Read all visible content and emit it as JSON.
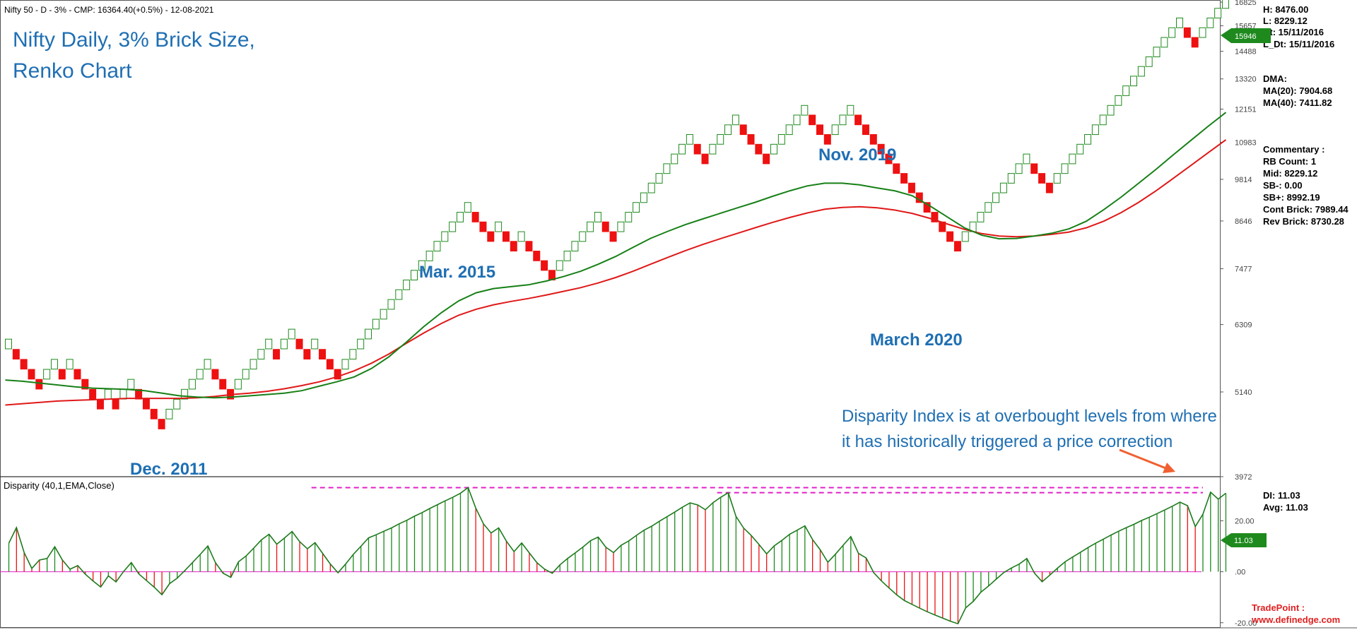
{
  "header": "Nifty 50 - D - 3% - CMP: 16364.40(+0.5%) - 12-08-2021",
  "title_lines": [
    "Nifty Daily, 3% Brick Size,",
    "Renko Chart"
  ],
  "annotations": {
    "dec2011": "Dec. 2011",
    "mar2015": "Mar. 2015",
    "nov2019": "Nov. 2019",
    "mar2020": "March 2020",
    "disparity_note": [
      "Disparity Index is at overbought levels from where",
      "it has historically triggered a price correction"
    ]
  },
  "info_panel": {
    "h": "H: 8476.00",
    "l": "L: 8229.12",
    "dt": "Dt: 15/11/2016",
    "ldt": "L_Dt: 15/11/2016",
    "dma_label": "DMA:",
    "ma20": "MA(20): 7904.68",
    "ma40": "MA(40): 7411.82",
    "commentary": "Commentary :",
    "rb_count": "RB Count: 1",
    "mid": "Mid: 8229.12",
    "sb_minus": "SB-: 0.00",
    "sb_plus": "SB+: 8992.19",
    "cont_brick": "Cont Brick: 7989.44",
    "rev_brick": "Rev Brick: 8730.28",
    "di": "DI: 11.03",
    "avg": "Avg: 11.03"
  },
  "price_marker": "15946",
  "di_marker": "11.03",
  "footer": {
    "brand": "TradePoint :",
    "url": "www.definedge.com"
  },
  "colors": {
    "up": "#1e8a1e",
    "down": "#ee1111",
    "ma20": "#178017",
    "ma40": "#e01818",
    "label_blue": "#1f6fb3",
    "magenta": "#e020c8"
  },
  "chart_data": [
    {
      "type": "renko",
      "title": "Nifty 50 - D - 3%",
      "brick_size_pct": 3,
      "y_axis_ticks": [
        3972,
        5140,
        6309,
        7477,
        8646,
        9814,
        10983,
        12151,
        13320,
        14488,
        15657,
        16825
      ],
      "ylim": [
        3972,
        16825
      ],
      "bricks": [
        {
          "d": "u",
          "lo": 5860
        },
        {
          "d": "d",
          "lo": 5680
        },
        {
          "d": "d",
          "lo": 5510
        },
        {
          "d": "d",
          "lo": 5345
        },
        {
          "d": "d",
          "lo": 5185
        },
        {
          "d": "u",
          "lo": 5345
        },
        {
          "d": "u",
          "lo": 5510
        },
        {
          "d": "d",
          "lo": 5345
        },
        {
          "d": "u",
          "lo": 5510
        },
        {
          "d": "d",
          "lo": 5345
        },
        {
          "d": "d",
          "lo": 5185
        },
        {
          "d": "d",
          "lo": 5030
        },
        {
          "d": "d",
          "lo": 4880
        },
        {
          "d": "u",
          "lo": 5030
        },
        {
          "d": "d",
          "lo": 4880
        },
        {
          "d": "u",
          "lo": 5030
        },
        {
          "d": "u",
          "lo": 5185
        },
        {
          "d": "d",
          "lo": 5030
        },
        {
          "d": "d",
          "lo": 4880
        },
        {
          "d": "d",
          "lo": 4735
        },
        {
          "d": "d",
          "lo": 4593
        },
        {
          "d": "u",
          "lo": 4735
        },
        {
          "d": "u",
          "lo": 4880
        },
        {
          "d": "u",
          "lo": 5030
        },
        {
          "d": "u",
          "lo": 5185
        },
        {
          "d": "u",
          "lo": 5345
        },
        {
          "d": "u",
          "lo": 5510
        },
        {
          "d": "d",
          "lo": 5345
        },
        {
          "d": "d",
          "lo": 5185
        },
        {
          "d": "d",
          "lo": 5030
        },
        {
          "d": "u",
          "lo": 5185
        },
        {
          "d": "u",
          "lo": 5345
        },
        {
          "d": "u",
          "lo": 5510
        },
        {
          "d": "u",
          "lo": 5680
        },
        {
          "d": "u",
          "lo": 5860
        },
        {
          "d": "d",
          "lo": 5680
        },
        {
          "d": "u",
          "lo": 5860
        },
        {
          "d": "u",
          "lo": 6040
        },
        {
          "d": "d",
          "lo": 5860
        },
        {
          "d": "d",
          "lo": 5680
        },
        {
          "d": "u",
          "lo": 5860
        },
        {
          "d": "d",
          "lo": 5680
        },
        {
          "d": "d",
          "lo": 5510
        },
        {
          "d": "d",
          "lo": 5345
        },
        {
          "d": "u",
          "lo": 5510
        },
        {
          "d": "u",
          "lo": 5680
        },
        {
          "d": "u",
          "lo": 5860
        },
        {
          "d": "u",
          "lo": 6040
        },
        {
          "d": "u",
          "lo": 6225
        },
        {
          "d": "u",
          "lo": 6415
        },
        {
          "d": "u",
          "lo": 6610
        },
        {
          "d": "u",
          "lo": 6810
        },
        {
          "d": "u",
          "lo": 7015
        },
        {
          "d": "u",
          "lo": 7225
        },
        {
          "d": "u",
          "lo": 7440
        },
        {
          "d": "u",
          "lo": 7660
        },
        {
          "d": "u",
          "lo": 7890
        },
        {
          "d": "u",
          "lo": 8125
        },
        {
          "d": "u",
          "lo": 8370
        },
        {
          "d": "u",
          "lo": 8620
        },
        {
          "d": "u",
          "lo": 8880
        },
        {
          "d": "d",
          "lo": 8620
        },
        {
          "d": "d",
          "lo": 8370
        },
        {
          "d": "d",
          "lo": 8125
        },
        {
          "d": "u",
          "lo": 8370
        },
        {
          "d": "d",
          "lo": 8125
        },
        {
          "d": "d",
          "lo": 7890
        },
        {
          "d": "u",
          "lo": 8125
        },
        {
          "d": "d",
          "lo": 7890
        },
        {
          "d": "d",
          "lo": 7660
        },
        {
          "d": "d",
          "lo": 7440
        },
        {
          "d": "d",
          "lo": 7225
        },
        {
          "d": "u",
          "lo": 7440
        },
        {
          "d": "u",
          "lo": 7660
        },
        {
          "d": "u",
          "lo": 7890
        },
        {
          "d": "u",
          "lo": 8125
        },
        {
          "d": "u",
          "lo": 8370
        },
        {
          "d": "u",
          "lo": 8620
        },
        {
          "d": "d",
          "lo": 8370
        },
        {
          "d": "d",
          "lo": 8125
        },
        {
          "d": "u",
          "lo": 8370
        },
        {
          "d": "u",
          "lo": 8620
        },
        {
          "d": "u",
          "lo": 8880
        },
        {
          "d": "u",
          "lo": 9145
        },
        {
          "d": "u",
          "lo": 9420
        },
        {
          "d": "u",
          "lo": 9700
        },
        {
          "d": "u",
          "lo": 9990
        },
        {
          "d": "u",
          "lo": 10290
        },
        {
          "d": "u",
          "lo": 10600
        },
        {
          "d": "u",
          "lo": 10920
        },
        {
          "d": "d",
          "lo": 10600
        },
        {
          "d": "d",
          "lo": 10290
        },
        {
          "d": "u",
          "lo": 10600
        },
        {
          "d": "u",
          "lo": 10920
        },
        {
          "d": "u",
          "lo": 11245
        },
        {
          "d": "u",
          "lo": 11585
        },
        {
          "d": "d",
          "lo": 11245
        },
        {
          "d": "d",
          "lo": 10920
        },
        {
          "d": "d",
          "lo": 10600
        },
        {
          "d": "d",
          "lo": 10290
        },
        {
          "d": "u",
          "lo": 10600
        },
        {
          "d": "u",
          "lo": 10920
        },
        {
          "d": "u",
          "lo": 11245
        },
        {
          "d": "u",
          "lo": 11585
        },
        {
          "d": "u",
          "lo": 11930
        },
        {
          "d": "d",
          "lo": 11585
        },
        {
          "d": "d",
          "lo": 11245
        },
        {
          "d": "d",
          "lo": 10920
        },
        {
          "d": "u",
          "lo": 11245
        },
        {
          "d": "u",
          "lo": 11585
        },
        {
          "d": "u",
          "lo": 11930
        },
        {
          "d": "d",
          "lo": 11585
        },
        {
          "d": "d",
          "lo": 11245
        },
        {
          "d": "d",
          "lo": 10920
        },
        {
          "d": "d",
          "lo": 10600
        },
        {
          "d": "d",
          "lo": 10290
        },
        {
          "d": "d",
          "lo": 9990
        },
        {
          "d": "d",
          "lo": 9700
        },
        {
          "d": "d",
          "lo": 9420
        },
        {
          "d": "d",
          "lo": 9145
        },
        {
          "d": "d",
          "lo": 8880
        },
        {
          "d": "d",
          "lo": 8620
        },
        {
          "d": "d",
          "lo": 8370
        },
        {
          "d": "d",
          "lo": 8125
        },
        {
          "d": "d",
          "lo": 7890
        },
        {
          "d": "u",
          "lo": 8125
        },
        {
          "d": "u",
          "lo": 8370
        },
        {
          "d": "u",
          "lo": 8620
        },
        {
          "d": "u",
          "lo": 8880
        },
        {
          "d": "u",
          "lo": 9145
        },
        {
          "d": "u",
          "lo": 9420
        },
        {
          "d": "u",
          "lo": 9700
        },
        {
          "d": "u",
          "lo": 9990
        },
        {
          "d": "u",
          "lo": 10290
        },
        {
          "d": "d",
          "lo": 9990
        },
        {
          "d": "d",
          "lo": 9700
        },
        {
          "d": "d",
          "lo": 9420
        },
        {
          "d": "u",
          "lo": 9700
        },
        {
          "d": "u",
          "lo": 9990
        },
        {
          "d": "u",
          "lo": 10290
        },
        {
          "d": "u",
          "lo": 10600
        },
        {
          "d": "u",
          "lo": 10920
        },
        {
          "d": "u",
          "lo": 11245
        },
        {
          "d": "u",
          "lo": 11585
        },
        {
          "d": "u",
          "lo": 11930
        },
        {
          "d": "u",
          "lo": 12290
        },
        {
          "d": "u",
          "lo": 12660
        },
        {
          "d": "u",
          "lo": 13040
        },
        {
          "d": "u",
          "lo": 13430
        },
        {
          "d": "u",
          "lo": 13830
        },
        {
          "d": "u",
          "lo": 14245
        },
        {
          "d": "u",
          "lo": 14670
        },
        {
          "d": "u",
          "lo": 15110
        },
        {
          "d": "u",
          "lo": 15565
        },
        {
          "d": "d",
          "lo": 15110
        },
        {
          "d": "d",
          "lo": 14670
        },
        {
          "d": "u",
          "lo": 15110
        },
        {
          "d": "u",
          "lo": 15565
        },
        {
          "d": "u",
          "lo": 16030
        },
        {
          "d": "u",
          "lo": 16510
        }
      ],
      "ma20": [
        5330,
        5310,
        5280,
        5250,
        5220,
        5200,
        5190,
        5180,
        5160,
        5120,
        5080,
        5060,
        5050,
        5060,
        5080,
        5100,
        5120,
        5160,
        5230,
        5300,
        5380,
        5520,
        5720,
        5980,
        6270,
        6540,
        6780,
        6950,
        7040,
        7080,
        7120,
        7200,
        7300,
        7420,
        7580,
        7760,
        7980,
        8200,
        8380,
        8550,
        8700,
        8850,
        9000,
        9150,
        9320,
        9480,
        9620,
        9700,
        9700,
        9650,
        9560,
        9480,
        9340,
        9060,
        8760,
        8470,
        8280,
        8190,
        8200,
        8260,
        8330,
        8440,
        8640,
        8950,
        9300,
        9700,
        10120,
        10580,
        11050,
        11540,
        12030
      ],
      "ma40": [
        4940,
        4960,
        4980,
        5000,
        5010,
        5020,
        5030,
        5040,
        5040,
        5040,
        5040,
        5050,
        5070,
        5100,
        5120,
        5150,
        5190,
        5240,
        5300,
        5380,
        5480,
        5610,
        5770,
        5960,
        6150,
        6330,
        6490,
        6610,
        6700,
        6770,
        6830,
        6900,
        6980,
        7060,
        7160,
        7280,
        7420,
        7580,
        7740,
        7900,
        8050,
        8190,
        8330,
        8470,
        8610,
        8740,
        8860,
        8960,
        9010,
        9030,
        9000,
        8940,
        8850,
        8720,
        8570,
        8430,
        8320,
        8260,
        8240,
        8260,
        8300,
        8360,
        8470,
        8640,
        8870,
        9150,
        9480,
        9850,
        10240,
        10650,
        11070
      ]
    },
    {
      "type": "bar",
      "title": "Disparity (40,1,EMA,Close)",
      "y_axis_ticks": [
        -20.0,
        0.0,
        20.0
      ],
      "y_tick_labels": [
        "-20.00",
        ".00",
        "20.00"
      ],
      "ylim": [
        -22.0,
        37.0
      ],
      "overbought_levels": [
        {
          "value": 33.0,
          "from_brick": 40
        },
        {
          "value": 31.0,
          "from_brick": 93
        }
      ],
      "series": [
        {
          "name": "Disparity",
          "values": [
            11.2,
            17.3,
            7.5,
            1.3,
            4.6,
            5.2,
            9.8,
            4.6,
            1.0,
            2.4,
            -1.0,
            -3.6,
            -6.0,
            -1.6,
            -4.0,
            0.1,
            3.6,
            -0.9,
            -3.5,
            -6.1,
            -9.0,
            -4.7,
            -2.5,
            0.5,
            3.6,
            6.8,
            10.1,
            3.5,
            -0.6,
            -2.2,
            3.9,
            6.2,
            9.3,
            12.5,
            14.7,
            10.8,
            13.2,
            15.8,
            11.8,
            9.0,
            11.4,
            7.2,
            3.0,
            -0.4,
            3.0,
            6.8,
            10.0,
            13.3,
            14.5,
            15.9,
            17.2,
            18.8,
            20.2,
            21.8,
            23.2,
            24.8,
            26.3,
            27.8,
            29.2,
            30.8,
            33.0,
            25.0,
            18.8,
            15.2,
            17.2,
            12.0,
            7.9,
            11.3,
            7.4,
            3.5,
            1.0,
            -0.6,
            2.7,
            5.2,
            7.4,
            9.7,
            12.2,
            13.6,
            9.6,
            7.5,
            10.4,
            12.1,
            14.3,
            16.3,
            17.9,
            19.8,
            21.6,
            23.4,
            25.3,
            27.0,
            26.2,
            24.3,
            27.1,
            29.2,
            31.0,
            21.7,
            17.1,
            14.2,
            10.7,
            7.0,
            10.2,
            12.3,
            14.7,
            16.3,
            18.0,
            12.6,
            8.6,
            3.7,
            6.9,
            10.4,
            13.8,
            7.2,
            5.4,
            -0.4,
            -3.6,
            -6.4,
            -9.1,
            -11.3,
            -12.8,
            -14.3,
            -15.7,
            -17.0,
            -18.2,
            -19.4,
            -20.4,
            -14.2,
            -11.6,
            -8.0,
            -5.6,
            -2.9,
            -0.3,
            1.5,
            3.0,
            5.2,
            -0.6,
            -3.9,
            -1.3,
            1.4,
            3.9,
            5.8,
            7.6,
            9.5,
            11.2,
            12.8,
            14.4,
            15.9,
            17.3,
            18.6,
            20.1,
            21.4,
            22.8,
            24.2,
            25.7,
            27.3,
            25.9,
            17.7,
            22.6,
            31.2,
            28.5,
            30.8
          ]
        }
      ]
    }
  ]
}
